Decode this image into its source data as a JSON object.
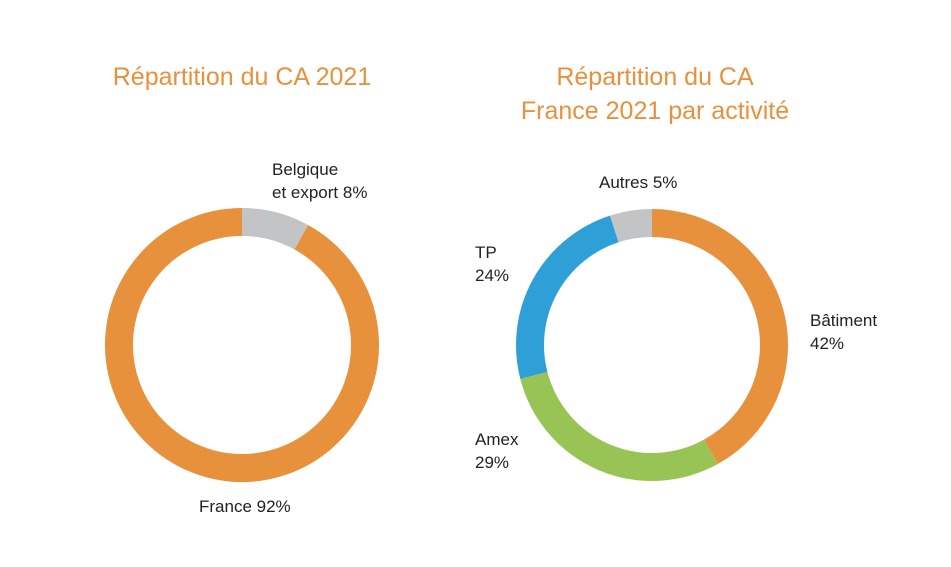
{
  "chart_data": [
    {
      "type": "pie",
      "title": "Répartition du CA 2021",
      "slices": [
        {
          "label_lines": [
            "Belgique",
            "et export 8%"
          ],
          "value": 8,
          "color": "#c3c4c6"
        },
        {
          "label_lines": [
            "France 92%"
          ],
          "value": 92,
          "color": "#e8913c"
        }
      ]
    },
    {
      "type": "pie",
      "title_lines": [
        "Répartition du CA",
        "France 2021 par activité"
      ],
      "slices": [
        {
          "label_lines": [
            "Bâtiment",
            "42%"
          ],
          "value": 42,
          "color": "#e8913c"
        },
        {
          "label_lines": [
            "Amex",
            "29%"
          ],
          "value": 29,
          "color": "#98c455"
        },
        {
          "label_lines": [
            "TP",
            "24%"
          ],
          "value": 24,
          "color": "#2f9fd8"
        },
        {
          "label_lines": [
            "Autres 5%"
          ],
          "value": 5,
          "color": "#c3c4c6"
        }
      ]
    }
  ]
}
